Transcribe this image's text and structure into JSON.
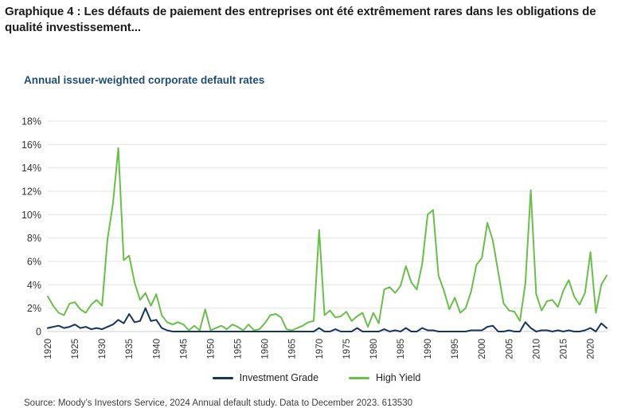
{
  "page": {
    "heading": "Graphique 4 : Les défauts de paiement des entreprises ont été extrêmement rares dans les obligations de qualité investissement...",
    "source": "Source: Moody’s Investors Service, 2024 Annual default study. Data to December 2023. 613530"
  },
  "colors": {
    "heading_text": "#1b1b1b",
    "chart_title_text": "#1f4e79",
    "axis_text": "#333333",
    "gridline": "#e4e4e4",
    "baseline": "#cfcfcf",
    "investment_grade": "#17365d",
    "high_yield": "#6abf4a"
  },
  "chart_data": {
    "type": "line",
    "title": "Annual issuer-weighted corporate default rates",
    "xlabel": "",
    "ylabel": "",
    "xlim": [
      1920,
      2023
    ],
    "ylim": [
      0,
      18
    ],
    "grid": "horizontal-only",
    "legend_position": "bottom",
    "x_tick_rotation": -90,
    "yticks": [
      0,
      2,
      4,
      6,
      8,
      10,
      12,
      14,
      16,
      18
    ],
    "ytick_labels": [
      "0",
      "2%",
      "4%",
      "6%",
      "8%",
      "10%",
      "12%",
      "14%",
      "16%",
      "18%"
    ],
    "xticks": [
      1920,
      1925,
      1930,
      1935,
      1940,
      1945,
      1950,
      1955,
      1960,
      1965,
      1970,
      1975,
      1980,
      1985,
      1990,
      1995,
      2000,
      2005,
      2010,
      2015,
      2020
    ],
    "x": [
      1920,
      1921,
      1922,
      1923,
      1924,
      1925,
      1926,
      1927,
      1928,
      1929,
      1930,
      1931,
      1932,
      1933,
      1934,
      1935,
      1936,
      1937,
      1938,
      1939,
      1940,
      1941,
      1942,
      1943,
      1944,
      1945,
      1946,
      1947,
      1948,
      1949,
      1950,
      1951,
      1952,
      1953,
      1954,
      1955,
      1956,
      1957,
      1958,
      1959,
      1960,
      1961,
      1962,
      1963,
      1964,
      1965,
      1966,
      1967,
      1968,
      1969,
      1970,
      1971,
      1972,
      1973,
      1974,
      1975,
      1976,
      1977,
      1978,
      1979,
      1980,
      1981,
      1982,
      1983,
      1984,
      1985,
      1986,
      1987,
      1988,
      1989,
      1990,
      1991,
      1992,
      1993,
      1994,
      1995,
      1996,
      1997,
      1998,
      1999,
      2000,
      2001,
      2002,
      2003,
      2004,
      2005,
      2006,
      2007,
      2008,
      2009,
      2010,
      2011,
      2012,
      2013,
      2014,
      2015,
      2016,
      2017,
      2018,
      2019,
      2020,
      2021,
      2022,
      2023
    ],
    "series": [
      {
        "name": "Investment Grade",
        "color": "#17365d",
        "values": [
          0.3,
          0.4,
          0.5,
          0.3,
          0.4,
          0.6,
          0.3,
          0.4,
          0.2,
          0.3,
          0.2,
          0.4,
          0.6,
          1.0,
          0.7,
          1.5,
          0.8,
          0.9,
          2.0,
          0.9,
          1.0,
          0.3,
          0.1,
          0,
          0,
          0,
          0,
          0,
          0,
          0,
          0,
          0,
          0,
          0,
          0,
          0,
          0,
          0,
          0,
          0,
          0,
          0,
          0,
          0,
          0,
          0,
          0,
          0,
          0,
          0,
          0.3,
          0,
          0,
          0.2,
          0,
          0,
          0,
          0.3,
          0,
          0,
          0,
          0,
          0.2,
          0,
          0.1,
          0,
          0.3,
          0,
          0,
          0.3,
          0.1,
          0.1,
          0,
          0,
          0,
          0,
          0,
          0,
          0.1,
          0.1,
          0.1,
          0.4,
          0.5,
          0,
          0,
          0.1,
          0,
          0,
          0.8,
          0.3,
          0,
          0.1,
          0.1,
          0,
          0.1,
          0,
          0.1,
          0,
          0,
          0.1,
          0.3,
          0,
          0.7,
          0.3
        ]
      },
      {
        "name": "High Yield",
        "color": "#6abf4a",
        "values": [
          3.0,
          2.2,
          1.6,
          1.4,
          2.4,
          2.5,
          1.9,
          1.6,
          2.3,
          2.7,
          2.2,
          7.9,
          10.9,
          15.7,
          6.1,
          6.5,
          4.2,
          2.7,
          3.3,
          2.2,
          3.2,
          1.4,
          0.8,
          0.6,
          0.8,
          0.6,
          0.1,
          0.5,
          0.1,
          1.9,
          0.1,
          0.3,
          0.5,
          0.2,
          0.6,
          0.4,
          0.1,
          0.6,
          0.1,
          0.2,
          0.7,
          1.4,
          1.5,
          1.2,
          0.2,
          0.1,
          0.3,
          0.5,
          0.8,
          0.9,
          8.7,
          1.4,
          1.8,
          1.2,
          1.3,
          1.7,
          0.9,
          1.3,
          1.6,
          0.4,
          1.6,
          0.7,
          3.6,
          3.8,
          3.3,
          3.9,
          5.6,
          4.2,
          3.6,
          5.8,
          10.0,
          10.4,
          4.8,
          3.5,
          1.9,
          2.9,
          1.6,
          2.0,
          3.4,
          5.7,
          6.3,
          9.3,
          7.8,
          5.1,
          2.4,
          1.8,
          1.7,
          0.9,
          4.1,
          12.1,
          3.2,
          1.8,
          2.6,
          2.7,
          2.1,
          3.5,
          4.4,
          3.0,
          2.3,
          3.3,
          6.8,
          1.6,
          4.0,
          4.8
        ]
      }
    ]
  }
}
